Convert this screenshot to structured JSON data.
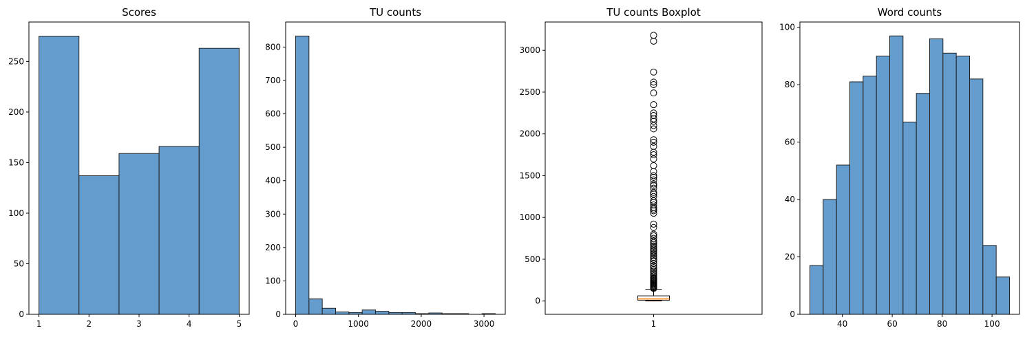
{
  "chart_data": [
    {
      "type": "bar",
      "title": "Scores",
      "xlabel": "",
      "ylabel": "",
      "bin_edges": [
        1,
        1.8,
        2.6,
        3.4,
        4.2,
        5
      ],
      "values": [
        275,
        137,
        159,
        166,
        263
      ],
      "xlim": [
        0.8,
        5.2
      ],
      "ylim": [
        0,
        289
      ],
      "xticks": [
        1,
        2,
        3,
        4,
        5
      ],
      "xtick_labels": [
        "1",
        "2",
        "3",
        "4",
        "5"
      ],
      "yticks": [
        0,
        50,
        100,
        150,
        200,
        250
      ],
      "ytick_labels": [
        "0",
        "50",
        "100",
        "150",
        "200",
        "250"
      ],
      "grid": false,
      "color": "#3d85c0"
    },
    {
      "type": "bar",
      "title": "TU counts",
      "xlabel": "",
      "ylabel": "",
      "bin_edges": [
        0,
        212,
        424,
        636,
        848,
        1060,
        1272,
        1484,
        1696,
        1908,
        2120,
        2332,
        2544,
        2756,
        2968,
        3180
      ],
      "values": [
        833,
        46,
        18,
        7,
        5,
        13,
        9,
        5,
        5,
        2,
        4,
        2,
        2,
        0,
        2
      ],
      "xlim": [
        -159,
        3339
      ],
      "ylim": [
        0,
        875
      ],
      "xticks": [
        0,
        1000,
        2000,
        3000
      ],
      "xtick_labels": [
        "0",
        "1000",
        "2000",
        "3000"
      ],
      "yticks": [
        0,
        100,
        200,
        300,
        400,
        500,
        600,
        700,
        800
      ],
      "ytick_labels": [
        "0",
        "100",
        "200",
        "300",
        "400",
        "500",
        "600",
        "700",
        "800"
      ],
      "grid": false,
      "color": "#3d85c0"
    },
    {
      "type": "box",
      "title": "TU counts Boxplot",
      "xlabel": "",
      "ylabel": "",
      "category_label": "1",
      "whisker_low": 0,
      "q1": 10,
      "median": 25,
      "q3": 62,
      "whisker_high": 140,
      "outliers": [
        150,
        160,
        170,
        180,
        190,
        200,
        210,
        220,
        230,
        240,
        250,
        260,
        270,
        280,
        300,
        320,
        340,
        360,
        380,
        400,
        420,
        450,
        480,
        500,
        520,
        540,
        560,
        580,
        600,
        620,
        640,
        660,
        680,
        700,
        720,
        750,
        780,
        800,
        880,
        920,
        1050,
        1080,
        1100,
        1120,
        1150,
        1180,
        1200,
        1250,
        1280,
        1300,
        1350,
        1380,
        1400,
        1450,
        1480,
        1500,
        1550,
        1620,
        1700,
        1750,
        1780,
        1850,
        1900,
        1930,
        2060,
        2100,
        2150,
        2180,
        2220,
        2250,
        2350,
        2490,
        2590,
        2620,
        2740,
        3110,
        3180
      ],
      "ylim": [
        -159,
        3339
      ],
      "yticks": [
        0,
        500,
        1000,
        1500,
        2000,
        2500,
        3000
      ],
      "ytick_labels": [
        "0",
        "500",
        "1000",
        "1500",
        "2000",
        "2500",
        "3000"
      ],
      "grid": false,
      "box_color": "#000000",
      "median_color": "#ff7f0e"
    },
    {
      "type": "bar",
      "title": "Word counts",
      "xlabel": "",
      "ylabel": "",
      "bin_edges": [
        27,
        32.33,
        37.67,
        43,
        48.33,
        53.67,
        59,
        64.33,
        69.67,
        75,
        80.33,
        85.67,
        91,
        96.33,
        101.67,
        107
      ],
      "values": [
        17,
        40,
        52,
        81,
        83,
        90,
        97,
        67,
        77,
        96,
        91,
        90,
        82,
        24,
        13
      ],
      "xlim": [
        23,
        111
      ],
      "ylim": [
        0,
        101.85
      ],
      "xticks": [
        40,
        60,
        80,
        100
      ],
      "xtick_labels": [
        "40",
        "60",
        "80",
        "100"
      ],
      "yticks": [
        0,
        20,
        40,
        60,
        80,
        100
      ],
      "ytick_labels": [
        "0",
        "20",
        "40",
        "60",
        "80",
        "100"
      ],
      "grid": false,
      "color": "#3d85c0"
    }
  ]
}
